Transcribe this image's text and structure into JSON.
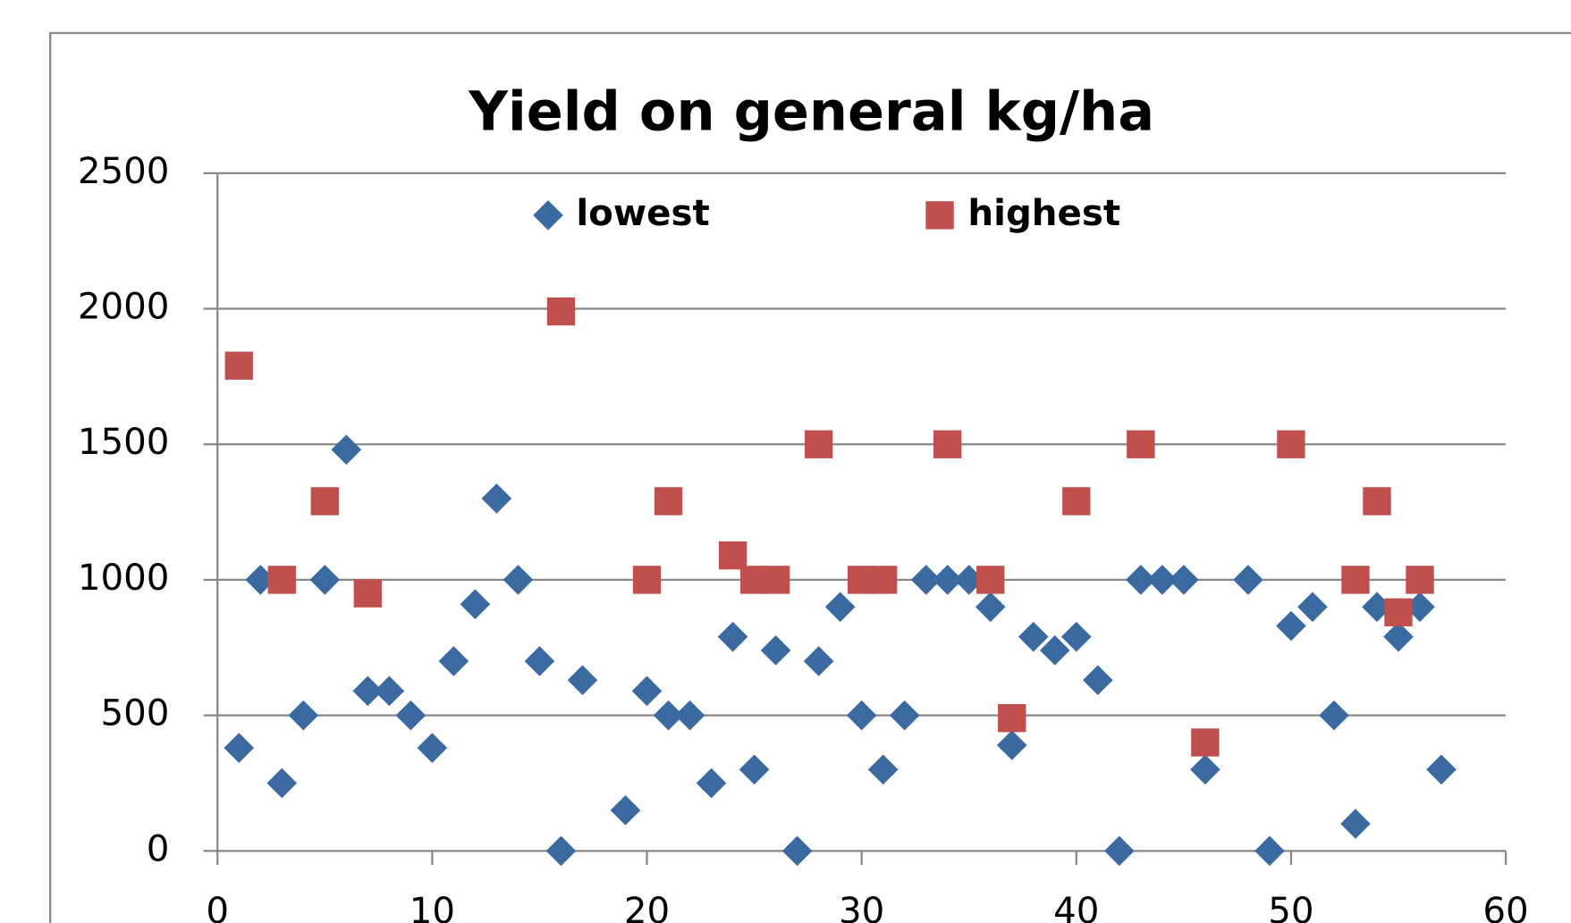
{
  "chart_data": {
    "type": "scatter",
    "title": "Yield on general kg/ha",
    "xlim": [
      0,
      60
    ],
    "xticks": [
      0,
      10,
      20,
      30,
      40,
      50,
      60
    ],
    "ylim": [
      0,
      2500
    ],
    "yticks": [
      0,
      500,
      1000,
      1500,
      2000,
      2500
    ],
    "grid": true,
    "legend": "top",
    "series": [
      {
        "name": "lowest",
        "color": "#3b6aa0",
        "marker": "diamond",
        "x": [
          1,
          2,
          3,
          4,
          5,
          6,
          7,
          8,
          9,
          10,
          11,
          12,
          13,
          14,
          15,
          16,
          17,
          19,
          20,
          21,
          22,
          23,
          24,
          25,
          26,
          27,
          28,
          29,
          30,
          31,
          32,
          33,
          34,
          35,
          36,
          37,
          38,
          39,
          40,
          41,
          42,
          43,
          44,
          45,
          46,
          48,
          49,
          50,
          51,
          52,
          53,
          54,
          55,
          56,
          57
        ],
        "values": [
          380,
          1000,
          250,
          500,
          1000,
          1480,
          590,
          590,
          500,
          380,
          700,
          910,
          1300,
          1000,
          700,
          0,
          630,
          150,
          590,
          500,
          500,
          250,
          790,
          300,
          740,
          0,
          700,
          900,
          500,
          300,
          500,
          1000,
          1000,
          1000,
          900,
          390,
          790,
          740,
          790,
          630,
          0,
          1000,
          1000,
          1000,
          300,
          1000,
          0,
          830,
          900,
          500,
          100,
          900,
          790,
          900,
          300
        ]
      },
      {
        "name": "highest",
        "color": "#c0504d",
        "marker": "square",
        "x": [
          1,
          3,
          5,
          7,
          16,
          20,
          21,
          24,
          25,
          26,
          28,
          30,
          31,
          34,
          36,
          37,
          40,
          43,
          46,
          50,
          53,
          54,
          55,
          56
        ],
        "values": [
          1790,
          1000,
          1290,
          950,
          1990,
          1000,
          1290,
          1090,
          1000,
          1000,
          1500,
          1000,
          1000,
          1500,
          1000,
          490,
          1290,
          1500,
          400,
          1500,
          1000,
          1290,
          880,
          1000
        ]
      }
    ]
  }
}
